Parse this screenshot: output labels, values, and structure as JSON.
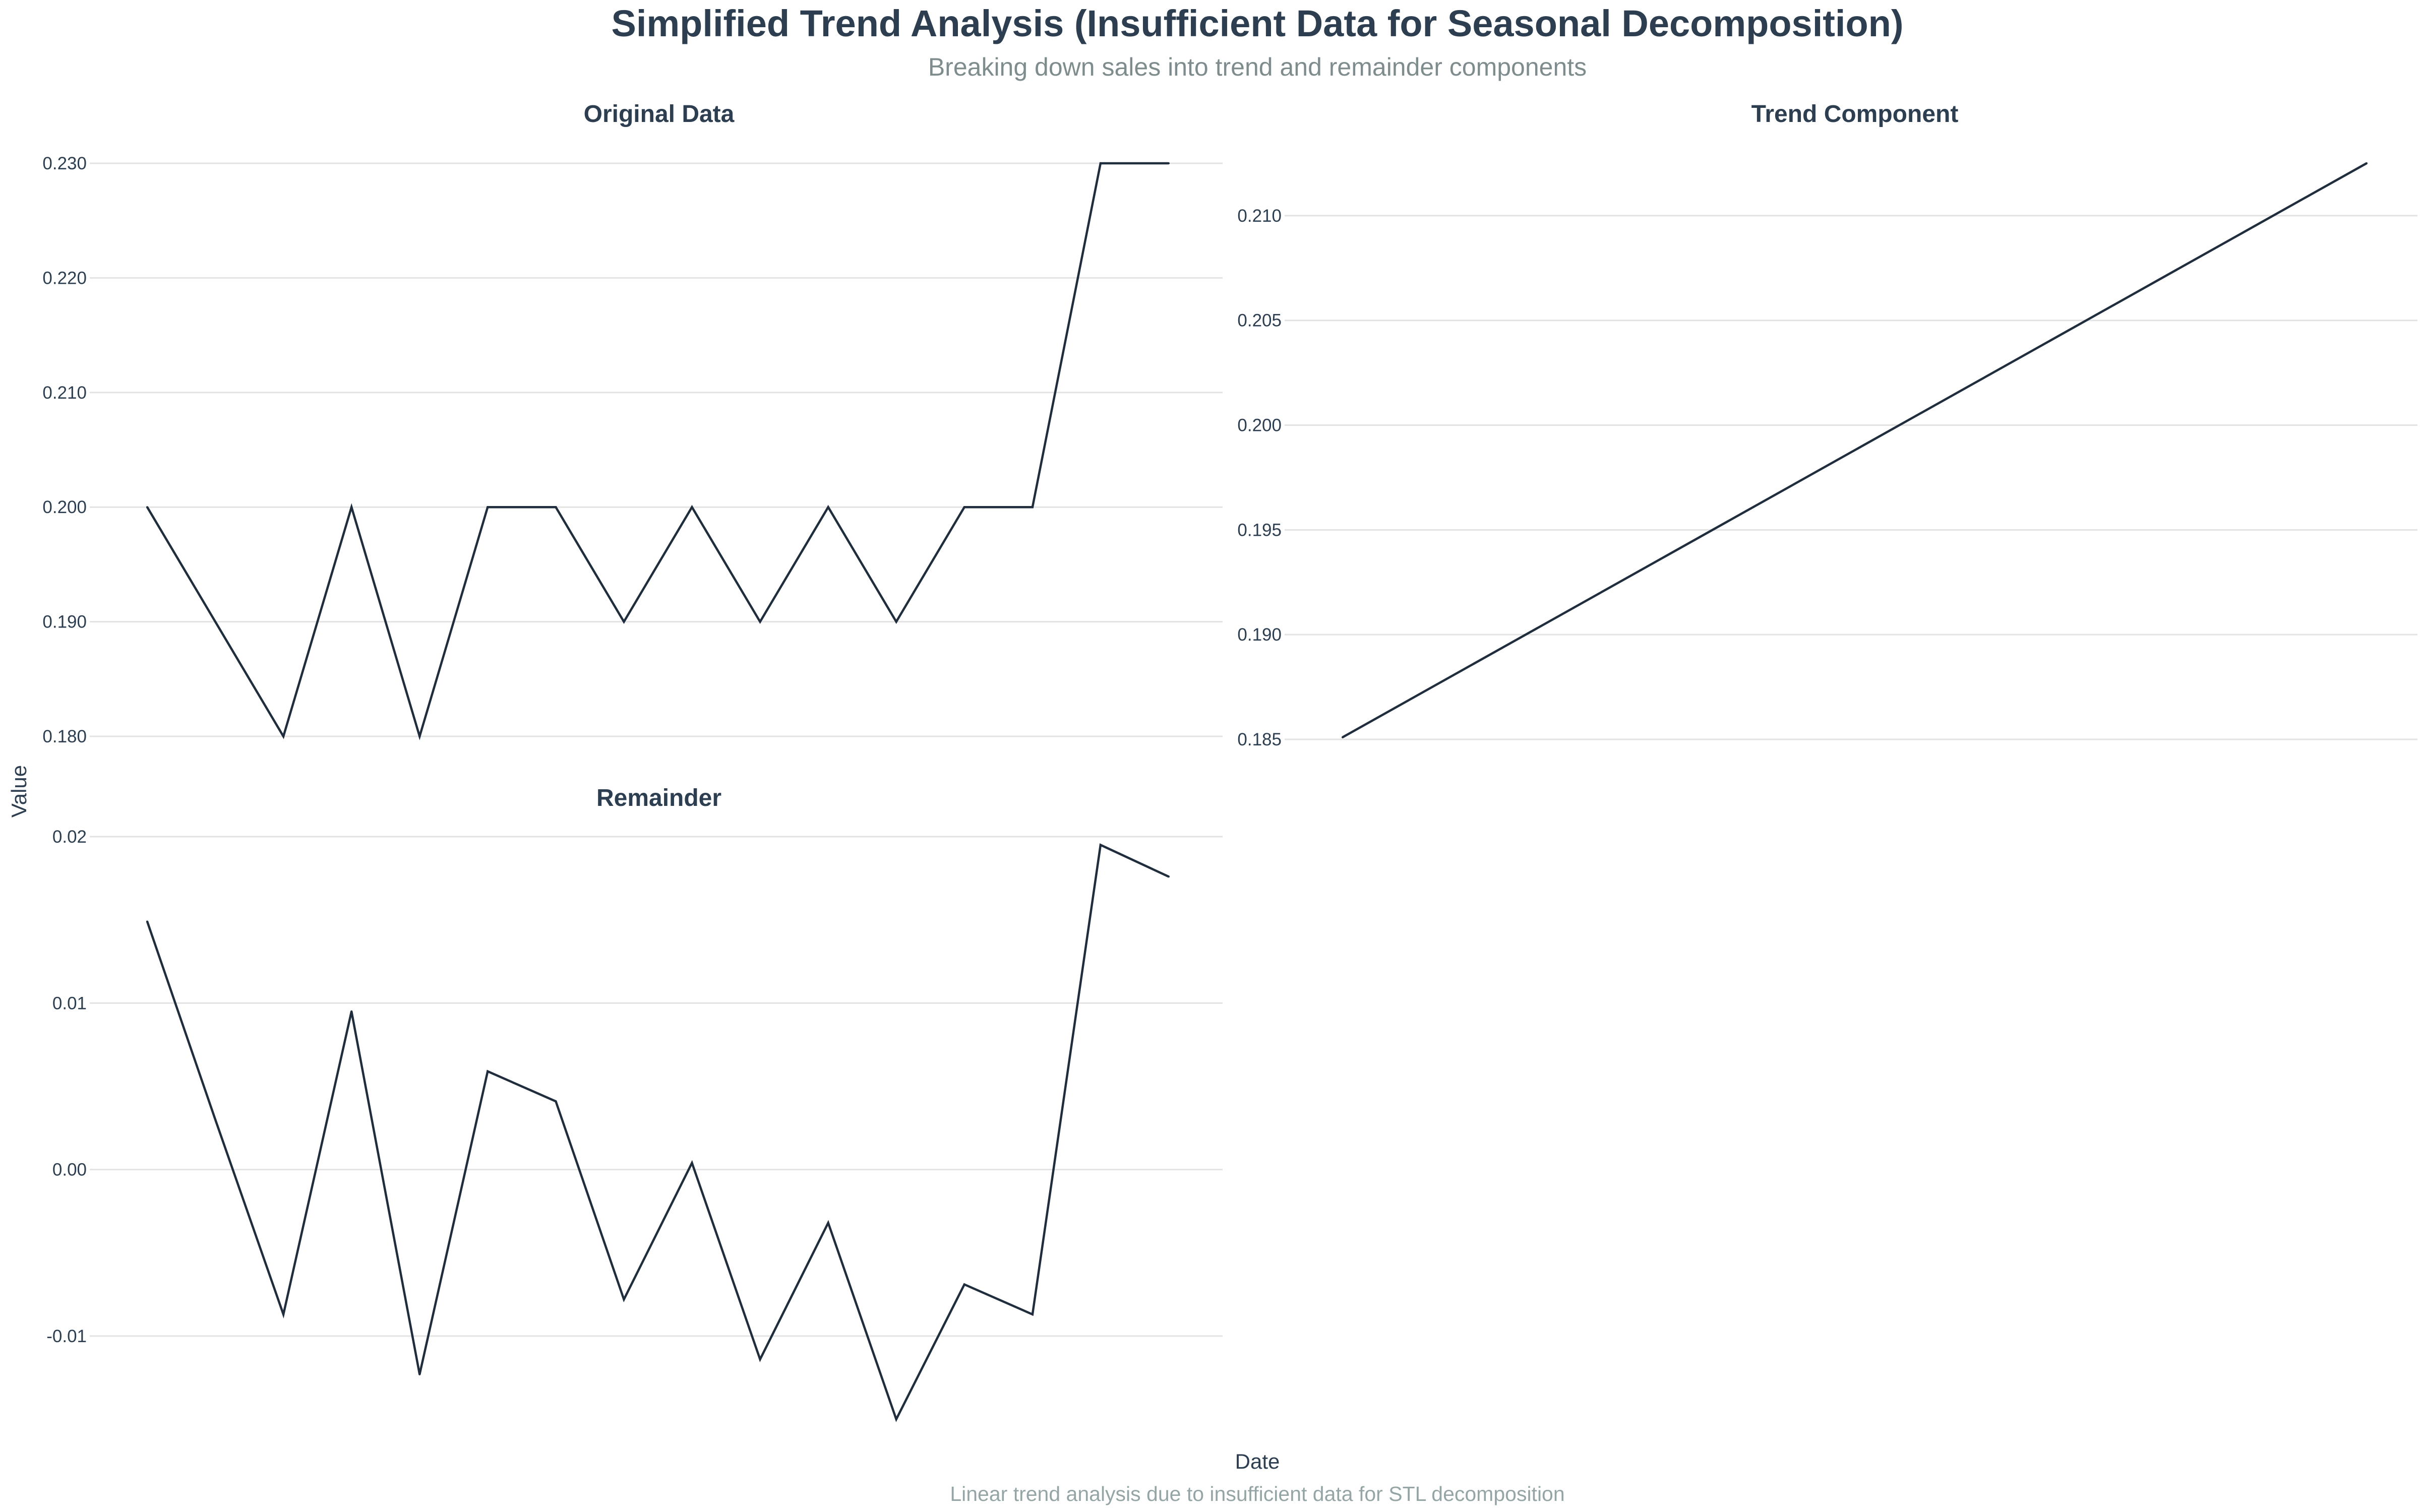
{
  "title": "Simplified Trend Analysis (Insufficient Data for Seasonal Decomposition)",
  "subtitle": "Breaking down sales into trend and remainder components",
  "caption": "Linear trend analysis due to insufficient data for STL decomposition",
  "xlabel": "Date",
  "ylabel": "Value",
  "colors": {
    "line": "#1f2d3d",
    "grid": "#e3e3e3",
    "title": "#2c3e50",
    "subtitle": "#7f8c8d",
    "caption": "#95a5a6"
  },
  "chart_data": [
    {
      "type": "line",
      "panel": "Original Data",
      "title": "Original Data",
      "x": [
        1,
        2,
        3,
        4,
        5,
        6,
        7,
        8,
        9,
        10,
        11,
        12,
        13,
        14,
        15,
        16
      ],
      "values": [
        0.2,
        0.19,
        0.18,
        0.2,
        0.18,
        0.2,
        0.2,
        0.19,
        0.2,
        0.19,
        0.2,
        0.19,
        0.2,
        0.2,
        0.23,
        0.23
      ],
      "ylim": [
        0.18,
        0.23
      ],
      "yticks": [
        0.18,
        0.19,
        0.2,
        0.21,
        0.22,
        0.23
      ],
      "ytick_labels": [
        "0.180",
        "0.190",
        "0.200",
        "0.210",
        "0.220",
        "0.230"
      ],
      "grid": true
    },
    {
      "type": "line",
      "panel": "Trend Component",
      "title": "Trend Component",
      "x": [
        1,
        16
      ],
      "values": [
        0.1851,
        0.2125
      ],
      "ylim": [
        0.185,
        0.2125
      ],
      "yticks": [
        0.185,
        0.19,
        0.195,
        0.2,
        0.205,
        0.21
      ],
      "ytick_labels": [
        "0.185",
        "0.190",
        "0.195",
        "0.200",
        "0.205",
        "0.210"
      ],
      "grid": true
    },
    {
      "type": "line",
      "panel": "Remainder",
      "title": "Remainder",
      "x": [
        1,
        2,
        3,
        4,
        5,
        6,
        7,
        8,
        9,
        10,
        11,
        12,
        13,
        14,
        15,
        16
      ],
      "values": [
        0.0149,
        0.003,
        -0.0087,
        0.0095,
        -0.0123,
        0.0059,
        0.0041,
        -0.0078,
        0.0004,
        -0.0114,
        -0.0032,
        -0.015,
        -0.0069,
        -0.0087,
        0.0195,
        0.0176
      ],
      "ylim": [
        -0.015,
        0.02
      ],
      "yticks": [
        -0.01,
        0.0,
        0.01,
        0.02
      ],
      "ytick_labels": [
        "-0.01",
        "0.00",
        "0.01",
        "0.02"
      ],
      "grid": true
    }
  ]
}
